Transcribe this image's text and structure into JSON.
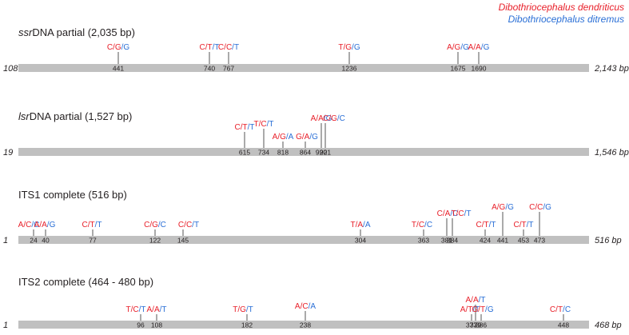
{
  "colors": {
    "dendriticus": "#e8202a",
    "ditremus": "#2a6fd6",
    "bar": "#c0c0c0",
    "text": "#231f20"
  },
  "legend": [
    {
      "label": "Dibothriocephalus dendriticus",
      "color": "#e8202a"
    },
    {
      "label": "Dibothriocephalus ditremus",
      "color": "#2a6fd6"
    }
  ],
  "loci": [
    {
      "title_prefix": "ssr",
      "title_rest": "DNA partial (2,035 bp)",
      "start_label": "108",
      "end_label": "2,143 bp",
      "sites": [
        {
          "pos": "441",
          "alleles": [
            "C",
            "G",
            "G"
          ]
        },
        {
          "pos": "740",
          "alleles": [
            "C",
            "T",
            "T"
          ]
        },
        {
          "pos": "767",
          "alleles": [
            "C",
            "C",
            "T"
          ]
        },
        {
          "pos": "1236",
          "alleles": [
            "T",
            "G",
            "G"
          ]
        },
        {
          "pos": "1675",
          "alleles": [
            "A",
            "G",
            "G"
          ]
        },
        {
          "pos": "1690",
          "alleles": [
            "A",
            "A",
            "G"
          ]
        }
      ]
    },
    {
      "title_prefix": "lsr",
      "title_rest": "DNA partial (1,527 bp)",
      "start_label": "19",
      "end_label": "1,546 bp",
      "sites": [
        {
          "pos": "615",
          "alleles": [
            "C",
            "T",
            "T"
          ]
        },
        {
          "pos": "734",
          "alleles": [
            "T",
            "C",
            "T"
          ]
        },
        {
          "pos": "818",
          "alleles": [
            "A",
            "G",
            "A"
          ]
        },
        {
          "pos": "864",
          "alleles": [
            "G",
            "A",
            "G"
          ]
        },
        {
          "pos": "920",
          "alleles": [
            "A",
            "A",
            "G"
          ]
        },
        {
          "pos": "921",
          "alleles": [
            "C",
            "G",
            "C"
          ]
        }
      ]
    },
    {
      "title_prefix": "",
      "title_rest": "ITS1 complete (516 bp)",
      "start_label": "1",
      "end_label": "516 bp",
      "sites": [
        {
          "pos": "24",
          "alleles": [
            "A",
            "C",
            "C"
          ]
        },
        {
          "pos": "40",
          "alleles": [
            "A",
            "A",
            "G"
          ]
        },
        {
          "pos": "77",
          "alleles": [
            "C",
            "T",
            "T"
          ]
        },
        {
          "pos": "122",
          "alleles": [
            "C",
            "G",
            "C"
          ]
        },
        {
          "pos": "145",
          "alleles": [
            "C",
            "C",
            "T"
          ]
        },
        {
          "pos": "304",
          "alleles": [
            "T",
            "A",
            "A"
          ]
        },
        {
          "pos": "363",
          "alleles": [
            "T",
            "C",
            "C"
          ]
        },
        {
          "pos": "381",
          "alleles": [
            "C",
            "A",
            "C"
          ]
        },
        {
          "pos": "384",
          "alleles": [
            "T",
            "C",
            "T"
          ]
        },
        {
          "pos": "424",
          "alleles": [
            "C",
            "T",
            "T"
          ]
        },
        {
          "pos": "441",
          "alleles": [
            "A",
            "G",
            "G"
          ]
        },
        {
          "pos": "453",
          "alleles": [
            "C",
            "T",
            "T"
          ]
        },
        {
          "pos": "473",
          "alleles": [
            "C",
            "C",
            "G"
          ]
        }
      ]
    },
    {
      "title_prefix": "",
      "title_rest": "ITS2 complete (464 - 480 bp)",
      "start_label": "1",
      "end_label": "468 bp",
      "sites": [
        {
          "pos": "96",
          "alleles": [
            "T",
            "C",
            "T"
          ]
        },
        {
          "pos": "108",
          "alleles": [
            "A",
            "A",
            "T"
          ]
        },
        {
          "pos": "182",
          "alleles": [
            "T",
            "G",
            "T"
          ]
        },
        {
          "pos": "238",
          "alleles": [
            "A",
            "C",
            "A"
          ]
        },
        {
          "pos": "373",
          "alleles": [
            "A",
            "T",
            "T"
          ]
        },
        {
          "pos": "379",
          "alleles": [
            "A",
            "A",
            "T"
          ]
        },
        {
          "pos": "386",
          "alleles": [
            "G",
            "T",
            "G"
          ]
        },
        {
          "pos": "448",
          "alleles": [
            "C",
            "T",
            "C"
          ]
        }
      ]
    }
  ]
}
